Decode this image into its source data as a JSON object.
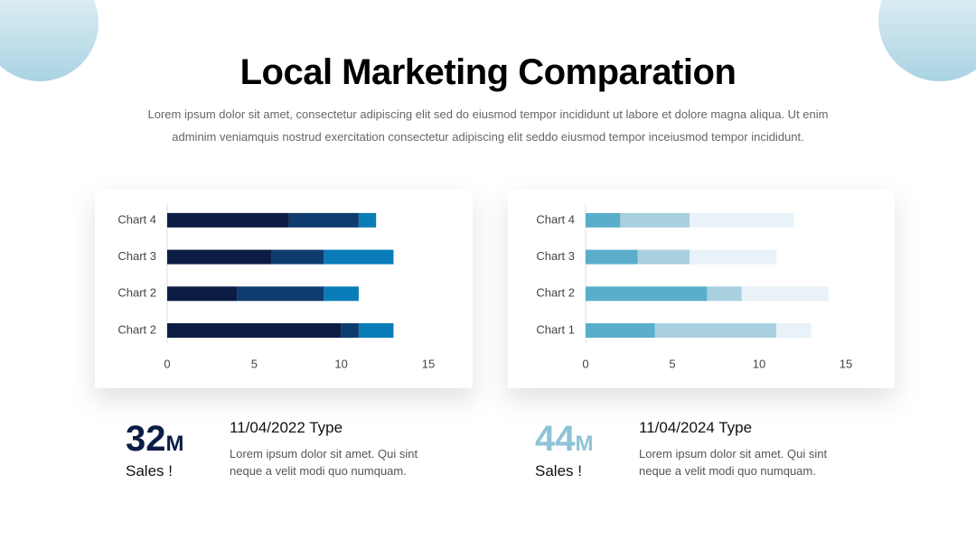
{
  "title": "Local Marketing Comparation",
  "subtitle": "Lorem ipsum dolor sit amet, consectetur adipiscing elit sed do eiusmod tempor incididunt ut labore et dolore magna aliqua. Ut enim adminim veniamquis nostrud exercitation consectetur adipiscing elit seddo eiusmod tempor inceiusmod tempor incididunt.",
  "chart_data": [
    {
      "type": "bar",
      "orientation": "horizontal",
      "stacked": true,
      "categories": [
        "Chart 2",
        "Chart 2",
        "Chart 3",
        "Chart 4"
      ],
      "series": [
        {
          "color": "#0b1d45",
          "values": [
            10,
            4,
            6,
            7
          ]
        },
        {
          "color": "#0f3c6e",
          "values": [
            1,
            5,
            3,
            4
          ]
        },
        {
          "color": "#0a7db8",
          "values": [
            2,
            2,
            4,
            1
          ]
        }
      ],
      "xlim": [
        0,
        15
      ],
      "xticks": [
        0,
        5,
        10,
        15
      ]
    },
    {
      "type": "bar",
      "orientation": "horizontal",
      "stacked": true,
      "categories": [
        "Chart 1",
        "Chart 2",
        "Chart 3",
        "Chart 4"
      ],
      "series": [
        {
          "color": "#5aaecb",
          "values": [
            4,
            7,
            3,
            2
          ]
        },
        {
          "color": "#a9d0df",
          "values": [
            7,
            2,
            3,
            4
          ]
        },
        {
          "color": "#e8f2f8",
          "values": [
            2,
            5,
            5,
            6
          ]
        }
      ],
      "xlim": [
        0,
        15
      ],
      "xticks": [
        0,
        5,
        10,
        15
      ]
    }
  ],
  "stats": [
    {
      "value": 32,
      "unit": "M",
      "label": "Sales !",
      "date": "11/04/2022 Type",
      "text": "Lorem ipsum dolor sit amet. Qui sint neque a velit modi quo numquam."
    },
    {
      "value": 44,
      "unit": "M",
      "label": "Sales !",
      "date": "11/04/2024 Type",
      "text": "Lorem ipsum dolor sit amet. Qui sint neque a velit modi quo numquam."
    }
  ]
}
